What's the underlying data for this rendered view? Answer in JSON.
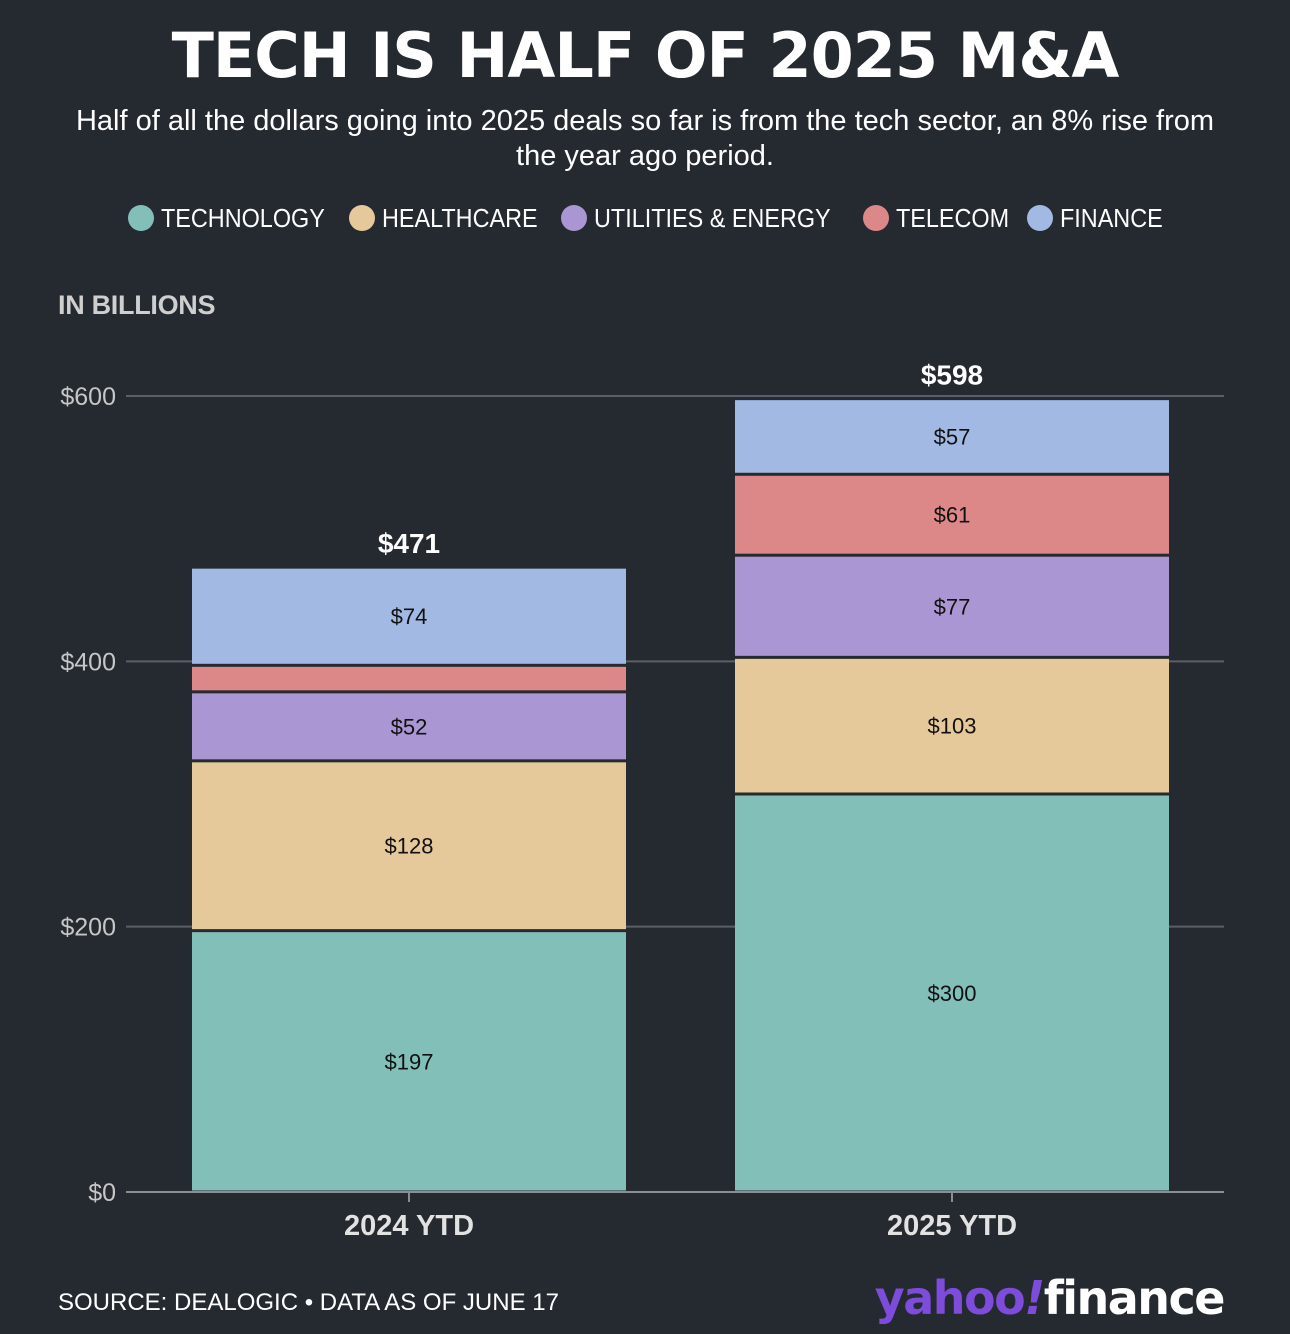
{
  "title": "TECH IS HALF OF 2025 M&A",
  "subtitle": "Half of all the dollars going into 2025 deals so far is from the tech sector, an 8% rise from the year ago period.",
  "unit_label": "IN BILLIONS",
  "source": "SOURCE: DEALOGIC • DATA AS OF JUNE 17",
  "logo": {
    "text": "yahoo!finance",
    "part1": "yahoo",
    "part2": "!",
    "part3": "finance"
  },
  "legend": [
    {
      "label": "TECHNOLOGY",
      "color": "#82bfb9"
    },
    {
      "label": "HEALTHCARE",
      "color": "#e5c99a"
    },
    {
      "label": "UTILITIES & ENERGY",
      "color": "#aa96d2"
    },
    {
      "label": "TELECOM",
      "color": "#dc8888"
    },
    {
      "label": "FINANCE",
      "color": "#a2b9e3"
    }
  ],
  "chart_data": {
    "type": "bar",
    "stacked": true,
    "categories": [
      "2024 YTD",
      "2025 YTD"
    ],
    "series": [
      {
        "name": "TECHNOLOGY",
        "values": [
          197,
          300
        ],
        "labels": [
          "$197",
          "$300"
        ],
        "color": "#82bfb9"
      },
      {
        "name": "HEALTHCARE",
        "values": [
          128,
          103
        ],
        "labels": [
          "$128",
          "$103"
        ],
        "color": "#e5c99a"
      },
      {
        "name": "UTILITIES & ENERGY",
        "values": [
          52,
          77
        ],
        "labels": [
          "$52",
          "$77"
        ],
        "color": "#aa96d2"
      },
      {
        "name": "TELECOM",
        "values": [
          20,
          61
        ],
        "labels": [
          "",
          "$61"
        ],
        "color": "#dc8888"
      },
      {
        "name": "FINANCE",
        "values": [
          74,
          57
        ],
        "labels": [
          "$74",
          "$57"
        ],
        "color": "#a2b9e3"
      }
    ],
    "totals": [
      471,
      598
    ],
    "total_labels": [
      "$471",
      "$598"
    ],
    "ylim": [
      0,
      600
    ],
    "yticks": [
      0,
      200,
      400,
      600
    ],
    "ytick_labels": [
      "$0",
      "$200",
      "$400",
      "$600"
    ],
    "grid": true,
    "legend_position": "top"
  }
}
